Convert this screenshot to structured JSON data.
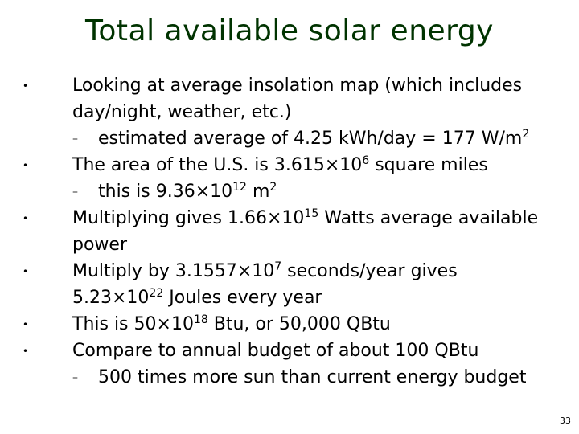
{
  "slide": {
    "title": "Total available solar energy",
    "bullet_glyph": "•",
    "dash_glyph": "–",
    "times": "×",
    "lines": {
      "l1": "Looking at average insolation map (which includes",
      "l2": "day/night, weather, etc.)",
      "l3": "estimated average of 4.25 kWh/day = 177 W/m",
      "l3_sup": "2",
      "l4_pre": "The area of the U.S. is 3.615",
      "l4_base": "10",
      "l4_sup": "6",
      "l4_post": " square miles",
      "l5_pre": "this is 9.36",
      "l5_base": "10",
      "l5_sup": "12",
      "l5_mid": " m",
      "l5_sup2": "2",
      "l6_pre": "Multiplying gives 1.66",
      "l6_base": "10",
      "l6_sup": "15",
      "l6_post": " Watts average available",
      "l7": "power",
      "l8_pre": "Multiply by 3.1557",
      "l8_base": "10",
      "l8_sup": "7",
      "l8_post": " seconds/year gives",
      "l9_pre": "5.23",
      "l9_base": "10",
      "l9_sup": "22",
      "l9_post": " Joules every year",
      "l10_pre": "This is 50",
      "l10_base": "10",
      "l10_sup": "18",
      "l10_post": " Btu, or 50,000 QBtu",
      "l11": "Compare to annual budget of about 100 QBtu",
      "l12": "500 times more sun than current energy budget"
    },
    "page_number": "33"
  }
}
